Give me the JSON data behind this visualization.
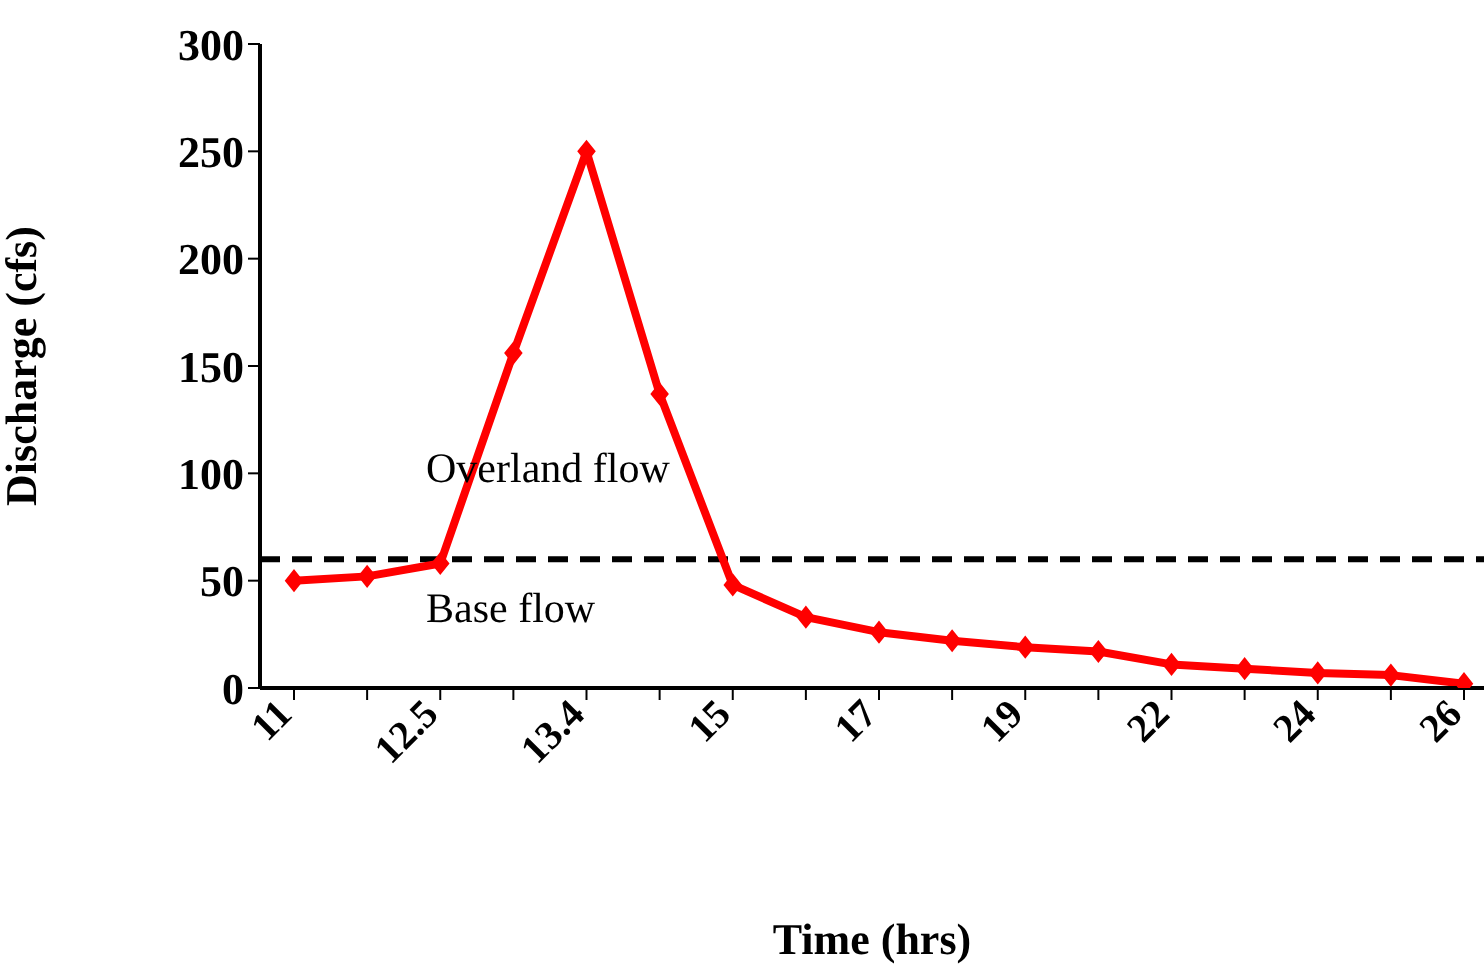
{
  "chart_data": {
    "type": "line",
    "xlabel": "Time (hrs)",
    "ylabel": "Discharge (cfs)",
    "categories": [
      "11",
      null,
      "12.5",
      null,
      "13.4",
      null,
      "15",
      null,
      "17",
      null,
      "19",
      null,
      "22",
      null,
      "24",
      null,
      "26"
    ],
    "series": [
      {
        "color": "#ff0000",
        "values": [
          50,
          52,
          58,
          156,
          250,
          137,
          48,
          33,
          26,
          22,
          19,
          17,
          11,
          9,
          7,
          6,
          2
        ]
      }
    ],
    "ylim": [
      0,
      300
    ],
    "yticks": [
      0,
      50,
      100,
      150,
      200,
      250,
      300
    ],
    "grid": false,
    "legend": false,
    "marker": "diamond",
    "line_style": "solid",
    "ref_lines": [
      {
        "axis": "y",
        "value": 60,
        "color": "#000000",
        "line_style": "dashed"
      }
    ],
    "annotations": [
      "Overland flow",
      "Base flow"
    ]
  }
}
